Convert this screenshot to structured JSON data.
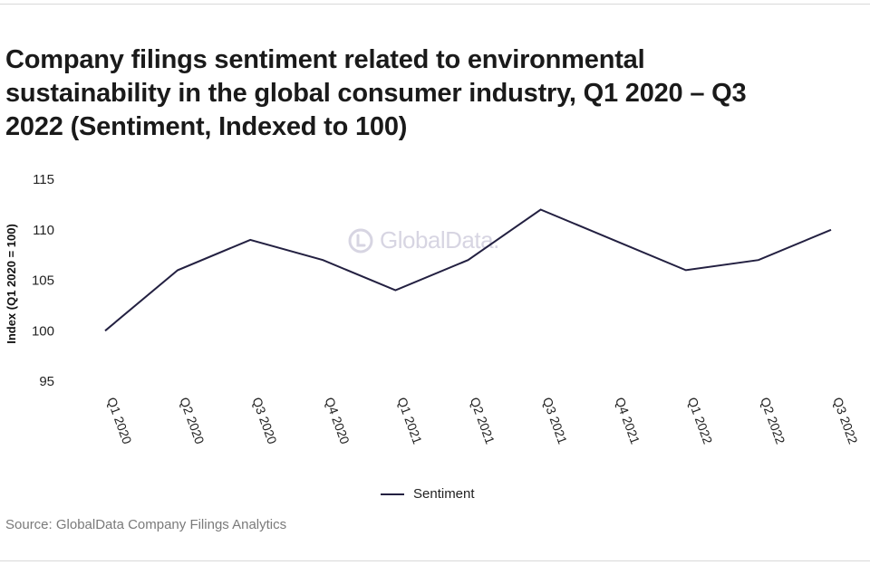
{
  "title": "Company filings sentiment related to environmental sustainability in the global consumer industry, Q1 2020 – Q3 2022 (Sentiment, Indexed to 100)",
  "source": "Source: GlobalData Company Filings Analytics",
  "watermark": "GlobalData.",
  "chart_data": {
    "type": "line",
    "title": "Company filings sentiment related to environmental sustainability in the global consumer industry, Q1 2020 – Q3 2022 (Sentiment, Indexed to 100)",
    "xlabel": "",
    "ylabel": "Index (Q1 2020 = 100)",
    "ylim": [
      95,
      115
    ],
    "yticks": [
      95,
      100,
      105,
      110,
      115
    ],
    "categories": [
      "Q1 2020",
      "Q2 2020",
      "Q3 2020",
      "Q4 2020",
      "Q1 2021",
      "Q2 2021",
      "Q3 2021",
      "Q4 2021",
      "Q1 2022",
      "Q2 2022",
      "Q3 2022"
    ],
    "series": [
      {
        "name": "Sentiment",
        "values": [
          100,
          106,
          109,
          107,
          104,
          107,
          112,
          109,
          106,
          107,
          110
        ],
        "color": "#232041"
      }
    ],
    "grid": false,
    "legend": "bottom-center"
  }
}
